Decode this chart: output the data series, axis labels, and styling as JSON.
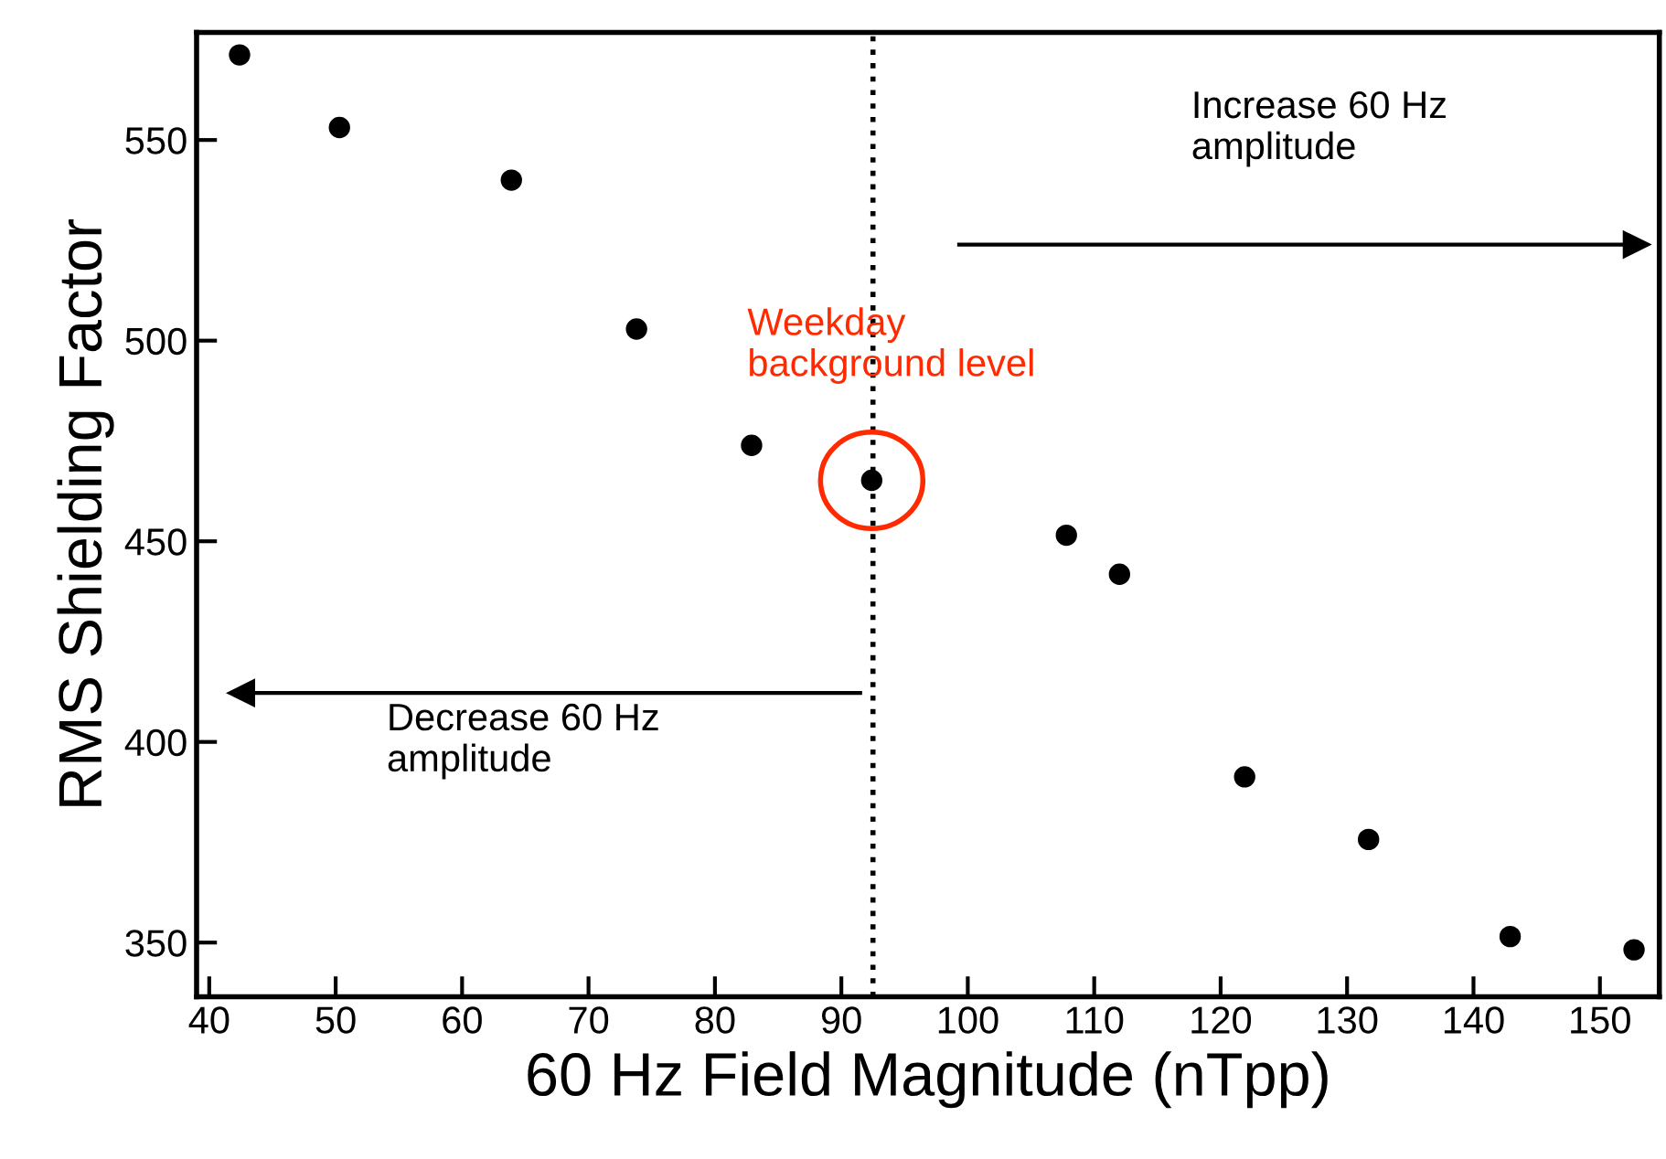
{
  "chart_data": {
    "type": "scatter",
    "xlabel": "60 Hz Field Magnitude (nTpp)",
    "ylabel": "RMS Shielding Factor",
    "x": [
      42.4,
      50.3,
      63.9,
      73.8,
      82.9,
      92.4,
      107.8,
      112.0,
      121.9,
      131.7,
      142.9,
      152.7
    ],
    "series": [
      {
        "color": "#000000",
        "values": [
          571.2,
          553.1,
          540.0,
          502.9,
          473.9,
          465.2,
          451.5,
          441.8,
          391.3,
          375.7,
          351.5,
          348.2
        ]
      }
    ],
    "marker": "circle",
    "xlim": [
      39,
      154.7
    ],
    "ylim": [
      336.5,
      576.8
    ],
    "xticks": [
      40,
      50,
      60,
      70,
      80,
      90,
      100,
      110,
      120,
      130,
      140,
      150
    ],
    "yticks": [
      350,
      400,
      450,
      500,
      550
    ],
    "grid": false,
    "legend": false,
    "ref_lines": [
      {
        "axis": "x",
        "value": 92.5,
        "color": "#000000",
        "line_style": "dotted"
      }
    ],
    "annotations": [
      {
        "text": "Weekday\nbackground level",
        "x": 92.4,
        "y": 465.2
      },
      "Increase 60 Hz\namplitude",
      "Decrease 60 Hz\namplitude"
    ]
  }
}
